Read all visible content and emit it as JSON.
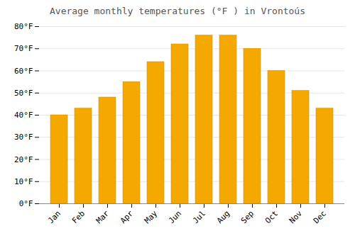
{
  "chart_data": {
    "type": "bar",
    "title": "Average monthly temperatures (°F ) in Vrontοús",
    "categories": [
      "Jan",
      "Feb",
      "Mar",
      "Apr",
      "May",
      "Jun",
      "Jul",
      "Aug",
      "Sep",
      "Oct",
      "Nov",
      "Dec"
    ],
    "values": [
      40,
      43,
      48,
      55,
      64,
      72,
      76,
      76,
      70,
      60,
      51,
      43
    ],
    "color": "#F5A800",
    "ylim": [
      0,
      80
    ],
    "yticks": [
      {
        "value": 0,
        "label": "0°F"
      },
      {
        "value": 10,
        "label": "10°F"
      },
      {
        "value": 20,
        "label": "20°F"
      },
      {
        "value": 30,
        "label": "30°F"
      },
      {
        "value": 40,
        "label": "40°F"
      },
      {
        "value": 50,
        "label": "50°F"
      },
      {
        "value": 60,
        "label": "60°F"
      },
      {
        "value": 70,
        "label": "70°F"
      },
      {
        "value": 80,
        "label": "80°F"
      }
    ],
    "grid": true
  }
}
